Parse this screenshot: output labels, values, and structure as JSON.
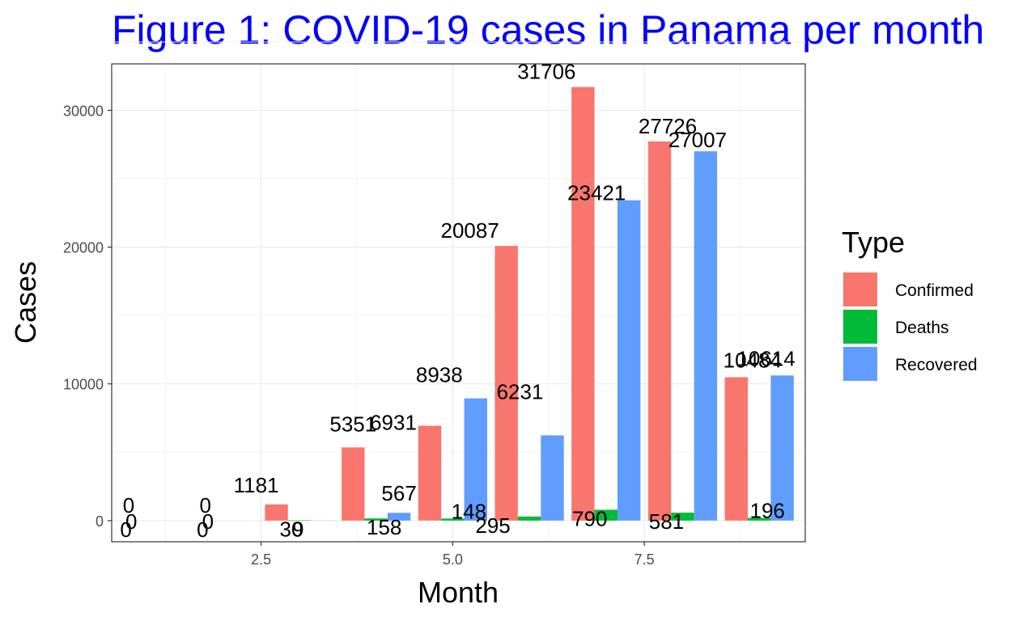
{
  "chart_data": {
    "type": "bar",
    "title": "Figure 1: COVID-19 cases in Panama per month",
    "xlabel": "Month",
    "ylabel": "Cases",
    "xlim": [
      0.55,
      9.6
    ],
    "ylim": [
      -1550,
      33400
    ],
    "x_ticks": [
      "2.5",
      "5.0",
      "7.5"
    ],
    "y_ticks": [
      "0",
      "10000",
      "20000",
      "30000"
    ],
    "grid": true,
    "legend": {
      "title": "Type",
      "position": "right"
    },
    "x": [
      1,
      2,
      3,
      4,
      5,
      6,
      7,
      8,
      9
    ],
    "series": [
      {
        "name": "Confirmed",
        "color": "#F8766D",
        "values": [
          0,
          0,
          1181,
          5351,
          6931,
          20087,
          31706,
          27726,
          10484
        ]
      },
      {
        "name": "Deaths",
        "color": "#00BA38",
        "values": [
          0,
          0,
          30,
          158,
          148,
          295,
          790,
          581,
          196
        ]
      },
      {
        "name": "Recovered",
        "color": "#619CFF",
        "values": [
          0,
          0,
          9,
          567,
          8938,
          6231,
          23421,
          27007,
          10614
        ]
      }
    ]
  }
}
